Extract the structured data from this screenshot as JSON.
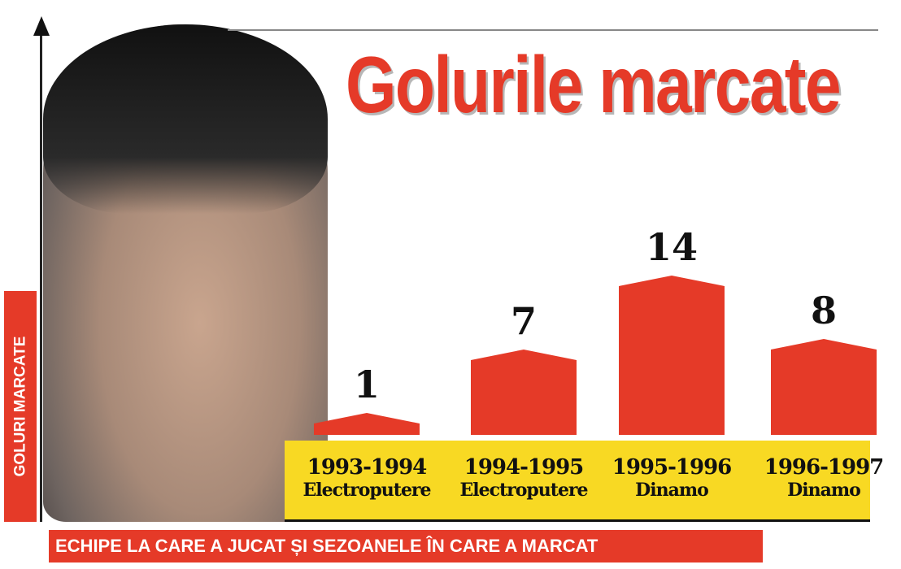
{
  "chart_data": {
    "type": "bar",
    "title": "Golurile marcate",
    "ylabel": "GOLURI MARCATE",
    "xlabel": "ECHIPE LA CARE A JUCAT ȘI SEZOANELE ÎN CARE A MARCAT",
    "categories": [
      {
        "season": "1993-1994",
        "team": "Electroputere"
      },
      {
        "season": "1994-1995",
        "team": "Electroputere"
      },
      {
        "season": "1995-1996",
        "team": "Dinamo"
      },
      {
        "season": "1996-1997",
        "team": "Dinamo"
      }
    ],
    "values": [
      1,
      7,
      14,
      8
    ],
    "colors": {
      "bar": "#e53a28",
      "band": "#f8d923",
      "title": "#e53a28"
    }
  }
}
